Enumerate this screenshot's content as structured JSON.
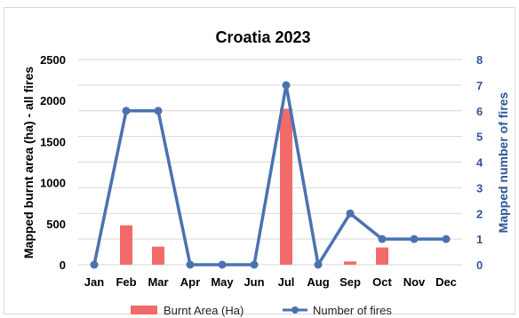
{
  "chart_data": {
    "type": "bar+line",
    "title": "Croatia 2023",
    "categories": [
      "Jan",
      "Feb",
      "Mar",
      "Apr",
      "May",
      "Jun",
      "Jul",
      "Aug",
      "Sep",
      "Oct",
      "Nov",
      "Dec"
    ],
    "series": [
      {
        "name": "Burnt Area (Ha)",
        "type": "bar",
        "axis": "left",
        "color": "#f26b6b",
        "values": [
          0,
          480,
          220,
          0,
          0,
          0,
          1900,
          0,
          40,
          210,
          0,
          0
        ]
      },
      {
        "name": "Number of fires",
        "type": "line",
        "axis": "right",
        "color": "#4a72b0",
        "values": [
          0,
          6,
          6,
          0,
          0,
          0,
          7,
          0,
          2,
          1,
          1,
          1
        ]
      }
    ],
    "ylabel_left": "Mapped burnt area (ha) - all fires",
    "ylabel_right": "Mapped number of fires",
    "ylim_left": [
      0,
      2500
    ],
    "yticks_left": [
      "0",
      "500",
      "1000",
      "1500",
      "2000",
      "2500"
    ],
    "ylim_right": [
      0,
      8
    ],
    "yticks_right": [
      "0",
      "1",
      "2",
      "3",
      "4",
      "5",
      "6",
      "7",
      "8"
    ],
    "grid": true,
    "legend_position": "bottom"
  }
}
